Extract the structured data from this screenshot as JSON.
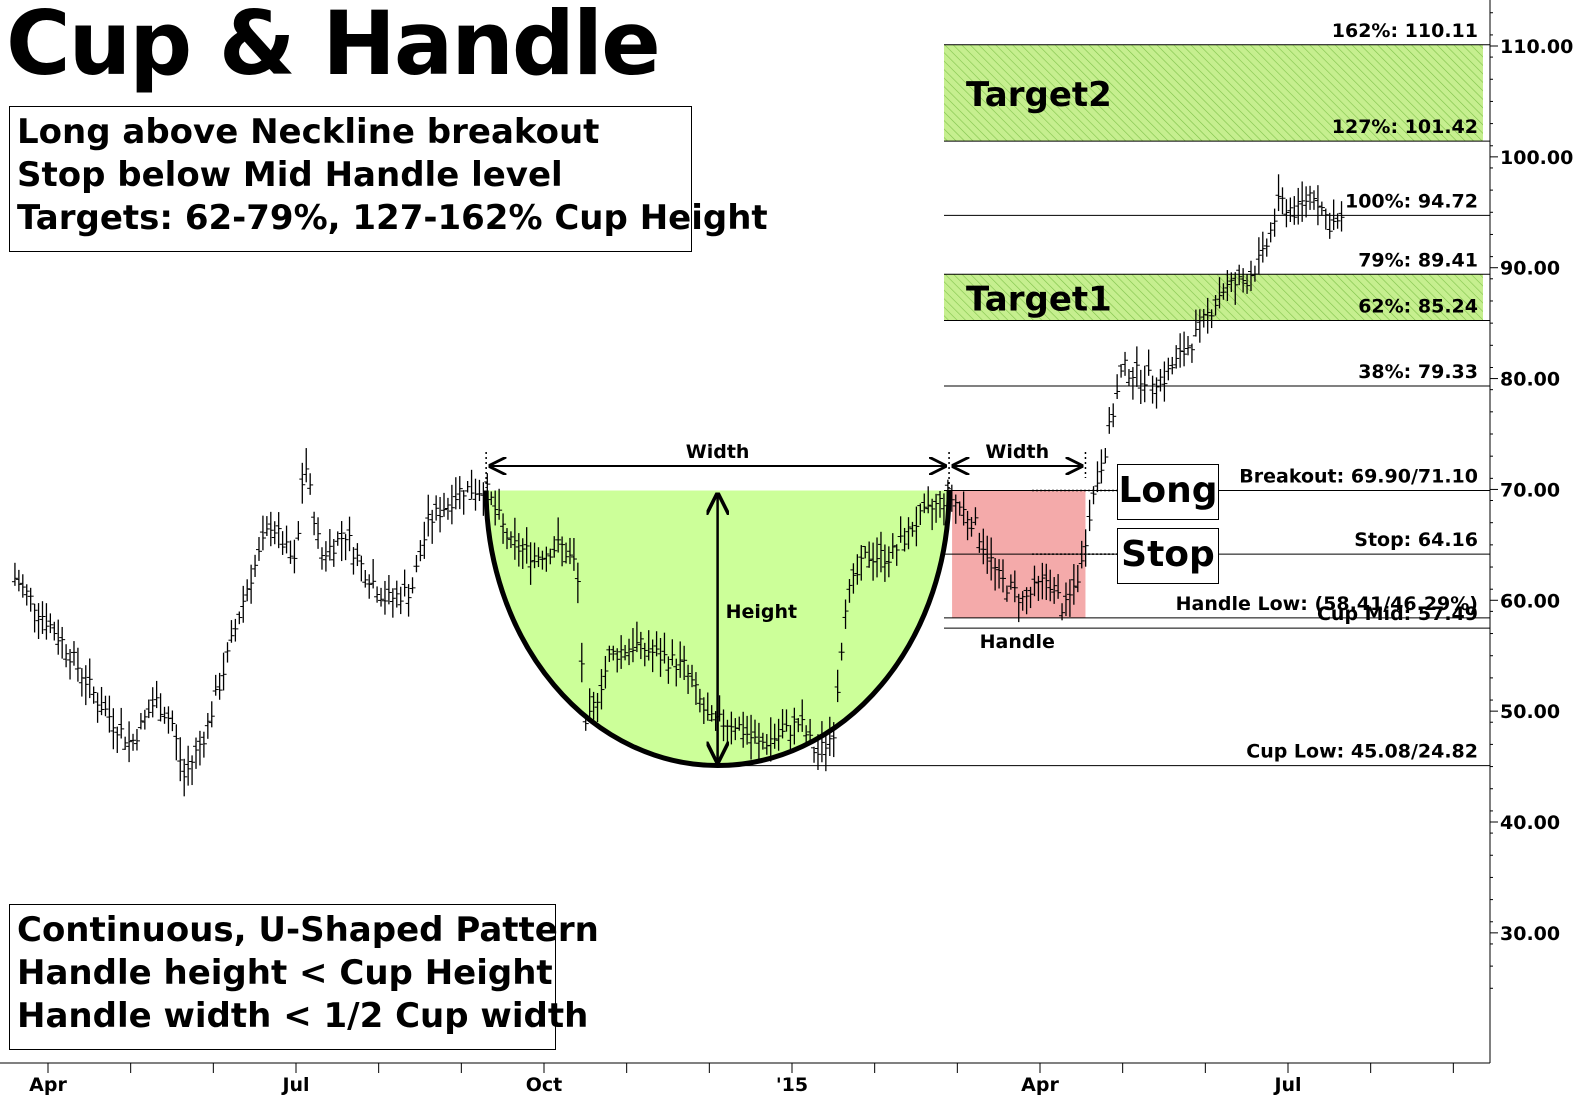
{
  "title": "Cup & Handle",
  "rules_box": {
    "lines": [
      "Long above Neckline breakout",
      "Stop below Mid Handle level",
      "Targets: 62-79%, 127-162% Cup Height"
    ]
  },
  "pattern_box": {
    "lines": [
      "Continuous, U-Shaped Pattern",
      "Handle height < Cup Height",
      "Handle width < 1/2 Cup width"
    ]
  },
  "tags": {
    "long": "Long",
    "stop": "Stop"
  },
  "colors": {
    "cup_fill": "#ccff99",
    "handle_fill": "#f4aaaa",
    "target_fill": "#c6ef8f",
    "target_hatch": "#7fc24a",
    "bars": "#000000"
  },
  "chart_data": {
    "type": "ohlc",
    "ylim": [
      20,
      115
    ],
    "y_ticks": [
      "110.00",
      "100.00",
      "90.00",
      "80.00",
      "70.00",
      "60.00",
      "50.00",
      "40.00",
      "30.00"
    ],
    "y_tick_values": [
      110,
      100,
      90,
      80,
      70,
      60,
      50,
      40,
      30
    ],
    "x_ticks": [
      "Apr",
      "Jul",
      "Oct",
      "'15",
      "Apr",
      "Jul"
    ],
    "x_tick_months": [
      0,
      3,
      6,
      9,
      12,
      15
    ],
    "x_range_months": [
      -0.4,
      17.4
    ],
    "levels": [
      {
        "label": "162%: 110.11",
        "value": 110.11
      },
      {
        "label": "127%: 101.42",
        "value": 101.42
      },
      {
        "label": "100%: 94.72",
        "value": 94.72
      },
      {
        "label": "79%: 89.41",
        "value": 89.41
      },
      {
        "label": "62%: 85.24",
        "value": 85.24
      },
      {
        "label": "38%: 79.33",
        "value": 79.33
      },
      {
        "label": "Breakout: 69.90/71.10",
        "value": 69.9
      },
      {
        "label": "Stop: 64.16",
        "value": 64.16
      },
      {
        "label": "Handle Low: (58.41/46.29%)",
        "value": 58.41
      },
      {
        "label": "Cup Mid: 57.49",
        "value": 57.49
      },
      {
        "label": "Cup Low: 45.08/24.82",
        "value": 45.08
      }
    ],
    "targets": [
      {
        "label": "Target2",
        "low": 101.42,
        "high": 110.11
      },
      {
        "label": "Target1",
        "low": 85.24,
        "high": 89.41
      }
    ],
    "annotations": {
      "cup_width": "Width",
      "handle_width": "Width",
      "cup_height": "Height",
      "handle": "Handle"
    },
    "cup": {
      "start_month": 5.3,
      "end_month": 10.9,
      "rim": 69.9,
      "low": 45.08
    },
    "handle": {
      "start_month": 10.9,
      "end_month": 12.55,
      "high": 69.9,
      "low": 58.41
    },
    "series": [
      {
        "values": [
          [
            -0.4,
            62
          ],
          [
            0.2,
            56
          ],
          [
            0.6,
            51
          ],
          [
            1.0,
            47
          ],
          [
            1.3,
            51
          ],
          [
            1.5,
            49
          ],
          [
            1.65,
            44
          ],
          [
            1.9,
            48
          ],
          [
            2.1,
            53
          ],
          [
            2.4,
            61
          ],
          [
            2.7,
            67
          ],
          [
            3.0,
            63
          ],
          [
            3.1,
            73
          ],
          [
            3.3,
            64
          ],
          [
            3.6,
            66
          ],
          [
            3.8,
            63
          ],
          [
            4.1,
            60
          ],
          [
            4.4,
            61
          ],
          [
            4.6,
            67
          ],
          [
            5.0,
            70
          ],
          [
            5.3,
            70
          ],
          [
            5.6,
            65
          ],
          [
            5.9,
            64
          ],
          [
            6.2,
            65
          ],
          [
            6.4,
            63
          ],
          [
            6.5,
            48
          ],
          [
            6.8,
            55
          ],
          [
            7.1,
            56
          ],
          [
            7.4,
            55
          ],
          [
            7.7,
            54
          ],
          [
            8.0,
            49
          ],
          [
            8.3,
            49
          ],
          [
            8.6,
            47
          ],
          [
            8.9,
            48
          ],
          [
            9.1,
            49
          ],
          [
            9.3,
            46
          ],
          [
            9.5,
            48
          ],
          [
            9.65,
            60
          ],
          [
            9.9,
            64
          ],
          [
            10.2,
            64
          ],
          [
            10.5,
            67
          ],
          [
            10.9,
            69.5
          ],
          [
            11.2,
            67
          ],
          [
            11.5,
            62
          ],
          [
            11.8,
            60
          ],
          [
            12.1,
            62
          ],
          [
            12.3,
            59
          ],
          [
            12.5,
            63
          ],
          [
            12.6,
            68
          ],
          [
            12.8,
            74
          ],
          [
            13.0,
            81
          ],
          [
            13.3,
            80
          ],
          [
            13.5,
            80
          ],
          [
            13.7,
            82
          ],
          [
            13.9,
            84
          ],
          [
            14.2,
            88
          ],
          [
            14.5,
            89
          ],
          [
            14.7,
            91
          ],
          [
            14.9,
            96
          ],
          [
            15.1,
            95
          ],
          [
            15.3,
            97
          ],
          [
            15.5,
            94
          ],
          [
            15.65,
            94
          ]
        ]
      }
    ]
  }
}
